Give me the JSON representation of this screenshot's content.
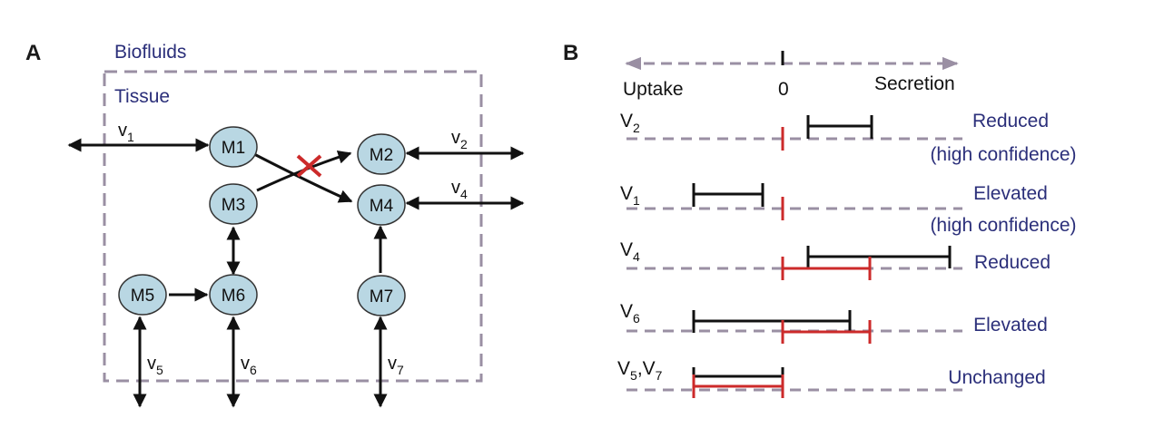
{
  "panel_a": {
    "letter": "A",
    "outer_label": "Biofluids",
    "inner_label": "Tissue",
    "nodes": [
      {
        "id": "M1",
        "label": "M1"
      },
      {
        "id": "M2",
        "label": "M2"
      },
      {
        "id": "M3",
        "label": "M3"
      },
      {
        "id": "M4",
        "label": "M4"
      },
      {
        "id": "M5",
        "label": "M5"
      },
      {
        "id": "M6",
        "label": "M6"
      },
      {
        "id": "M7",
        "label": "M7"
      }
    ],
    "fluxes": [
      {
        "id": "v1",
        "base": "v",
        "sub": "1"
      },
      {
        "id": "v2",
        "base": "v",
        "sub": "2"
      },
      {
        "id": "v4",
        "base": "v",
        "sub": "4"
      },
      {
        "id": "v5",
        "base": "v",
        "sub": "5"
      },
      {
        "id": "v6",
        "base": "v",
        "sub": "6"
      },
      {
        "id": "v7",
        "base": "v",
        "sub": "7"
      }
    ],
    "colors": {
      "node_fill": "#b9d7e3",
      "box_dash": "#9a8fa3",
      "blocked_mark": "#cc2a2a"
    }
  },
  "panel_b": {
    "letter": "B",
    "axis": {
      "left_label": "Uptake",
      "zero_label": "0",
      "right_label": "Secretion"
    },
    "rows": [
      {
        "id": "V2",
        "label_base": "V",
        "label_sub": "2",
        "status": [
          "Reduced",
          "(high confidence)"
        ]
      },
      {
        "id": "V1",
        "label_base": "V",
        "label_sub": "1",
        "status": [
          "Elevated",
          "(high confidence)"
        ]
      },
      {
        "id": "V4",
        "label_base": "V",
        "label_sub": "4",
        "status": [
          "Reduced"
        ]
      },
      {
        "id": "V6",
        "label_base": "V",
        "label_sub": "6",
        "status": [
          "Elevated"
        ]
      },
      {
        "id": "V57",
        "label_base": "V",
        "label_sub": "5",
        "label_sep": ",V",
        "label_sub2": "7",
        "status": [
          "Unchanged"
        ]
      }
    ],
    "colors": {
      "normal_range": "#cc2a2a",
      "perturbed_range": "#111111",
      "baseline_dash": "#9a8fa3",
      "status_text": "#2b2f7a"
    }
  }
}
